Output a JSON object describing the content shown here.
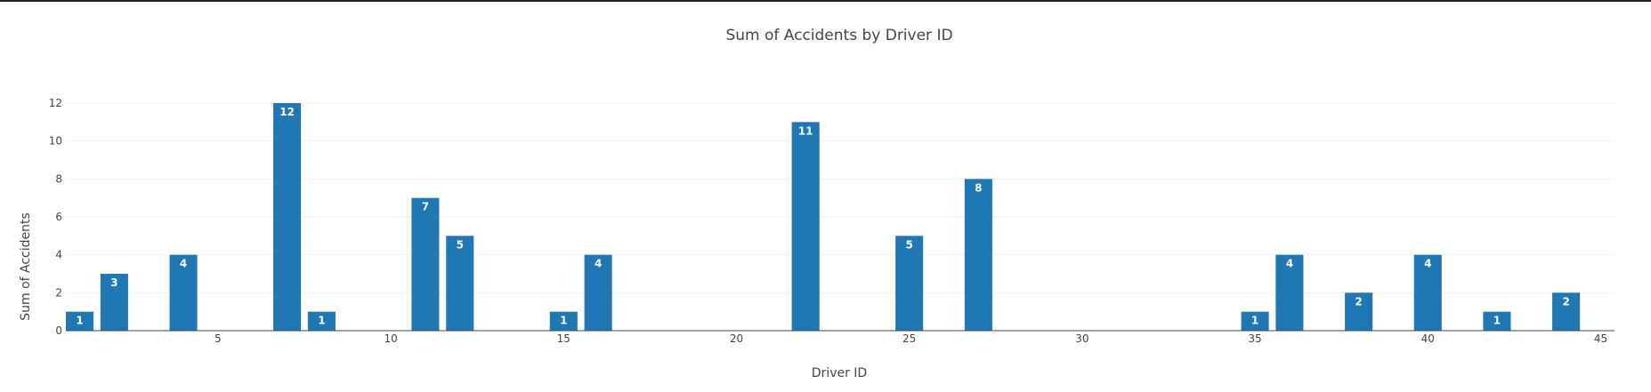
{
  "chart_data": {
    "type": "bar",
    "title": "Sum of Accidents by Driver ID",
    "xlabel": "Driver ID",
    "ylabel": "Sum of Accidents",
    "x": [
      1,
      2,
      4,
      7,
      8,
      11,
      12,
      15,
      16,
      22,
      25,
      27,
      35,
      36,
      38,
      40,
      42,
      44
    ],
    "values": [
      1,
      3,
      4,
      12,
      1,
      7,
      5,
      1,
      4,
      11,
      5,
      8,
      1,
      4,
      2,
      4,
      1,
      2
    ],
    "xlim": [
      0.6,
      45.4
    ],
    "ylim": [
      0,
      12.6
    ],
    "xticks": [
      5,
      10,
      15,
      20,
      25,
      30,
      35,
      40,
      45
    ],
    "yticks": [
      0,
      2,
      4,
      6,
      8,
      10,
      12
    ],
    "grid": true,
    "bar_color": "#1f77b4",
    "label_color": "#ffffff"
  }
}
